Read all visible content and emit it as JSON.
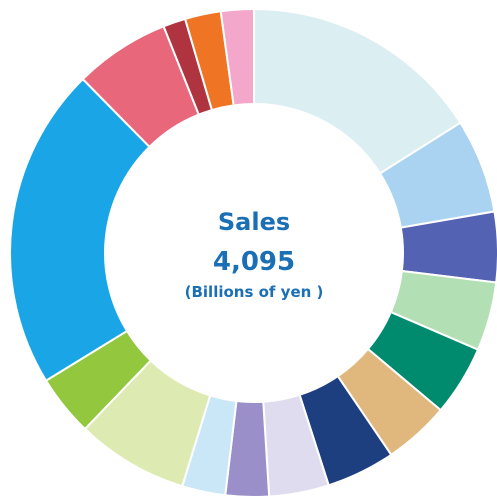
{
  "chart_data": {
    "type": "pie",
    "variant": "donut",
    "center": {
      "title": "Sales",
      "value": "4,095",
      "unit": "(Billions of yen )"
    },
    "slices": [
      {
        "value": 16.2,
        "color": "#dbeff3"
      },
      {
        "value": 6.3,
        "color": "#a9d3f0"
      },
      {
        "value": 4.7,
        "color": "#5462b3"
      },
      {
        "value": 4.6,
        "color": "#b3dfb4"
      },
      {
        "value": 4.7,
        "color": "#008a6e"
      },
      {
        "value": 4.4,
        "color": "#e0b87e"
      },
      {
        "value": 4.6,
        "color": "#1d3f80"
      },
      {
        "value": 4.0,
        "color": "#dfdcef"
      },
      {
        "value": 2.9,
        "color": "#9b8fca"
      },
      {
        "value": 2.9,
        "color": "#c9e7f7"
      },
      {
        "value": 7.5,
        "color": "#ddebb2"
      },
      {
        "value": 4.1,
        "color": "#93c83e"
      },
      {
        "value": 21.6,
        "color": "#1aa5e6"
      },
      {
        "value": 6.4,
        "color": "#e8677b"
      },
      {
        "value": 1.5,
        "color": "#b0343f"
      },
      {
        "value": 2.4,
        "color": "#ef7424"
      },
      {
        "value": 2.2,
        "color": "#f2a7cb"
      }
    ]
  }
}
